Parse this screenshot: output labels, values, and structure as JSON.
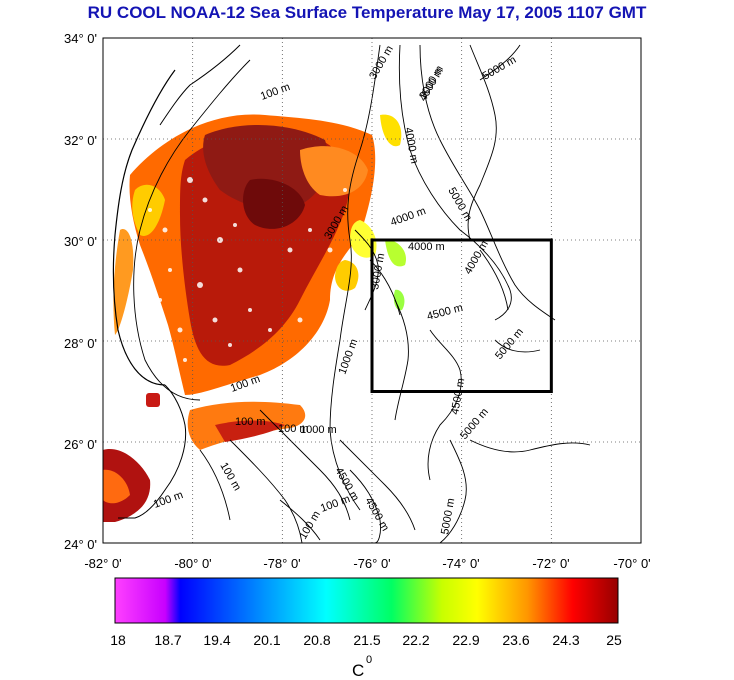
{
  "title": "RU COOL  NOAA-12 Sea Surface Temperature May 17, 2005 1107 GMT",
  "map": {
    "lat_labels": [
      "34° 0'",
      "32° 0'",
      "30° 0'",
      "28° 0'",
      "26° 0'",
      "24° 0'"
    ],
    "lon_labels": [
      "-82° 0'",
      "-80° 0'",
      "-78° 0'",
      "-76° 0'",
      "-74° 0'",
      "-72° 0'",
      "-70° 0'"
    ],
    "lat_range": [
      24,
      34
    ],
    "lon_range": [
      -82,
      -70
    ],
    "study_box": {
      "lon": [
        -76,
        -72
      ],
      "lat": [
        27,
        30
      ]
    },
    "contour_labels": [
      "100 m",
      "100 m",
      "100 m",
      "100 m",
      "100 m",
      "100 m",
      "100 m",
      "3000 m",
      "3000 m",
      "3000 m",
      "4000 m",
      "4000 m",
      "4000 m",
      "4000 m",
      "4500 m",
      "4500 m",
      "4500 m",
      "4500 m",
      "5000 m",
      "5000 m",
      "5000 m",
      "5000 m",
      "1000 m",
      "1000 m",
      "3000 m",
      "4500 m",
      "5000 m",
      "100 m"
    ]
  },
  "colorbar": {
    "ticks": [
      "18",
      "18.7",
      "19.4",
      "20.1",
      "20.8",
      "21.5",
      "22.2",
      "22.9",
      "23.6",
      "24.3",
      "25"
    ],
    "unit": "C",
    "unit_sup": "0",
    "colors": [
      "#ff40ff",
      "#c800ff",
      "#0000ff",
      "#0096ff",
      "#00ffff",
      "#00ff64",
      "#c8ff00",
      "#ffff00",
      "#ff9600",
      "#ff0000",
      "#960000"
    ]
  },
  "colors": {
    "title": "#1414b4",
    "land_pale": "#ffffff",
    "grid": "#555555"
  }
}
